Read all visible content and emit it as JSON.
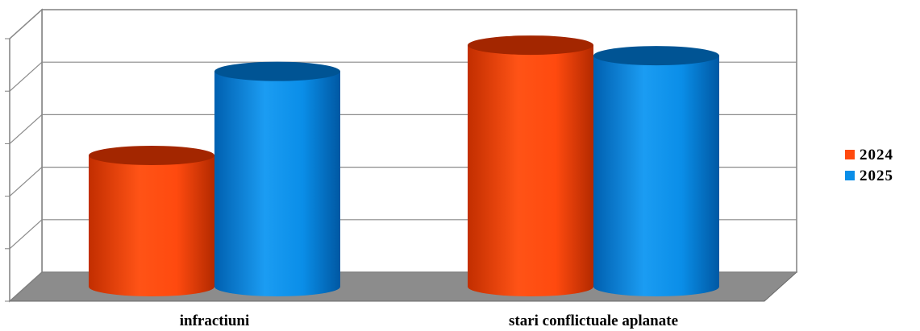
{
  "chart_data": {
    "type": "bar",
    "style": "3d-cylinder",
    "categories": [
      "infractiuni",
      "stari conflictuale aplanate"
    ],
    "series": [
      {
        "name": "2024",
        "color": "#ff4a0f",
        "values": [
          2.5,
          4.6
        ]
      },
      {
        "name": "2025",
        "color": "#0a8ee8",
        "values": [
          4.1,
          4.4
        ]
      }
    ],
    "ylim": [
      0,
      5
    ],
    "grid": true,
    "legend_position": "right",
    "axis_tick_labels_visible": false
  }
}
